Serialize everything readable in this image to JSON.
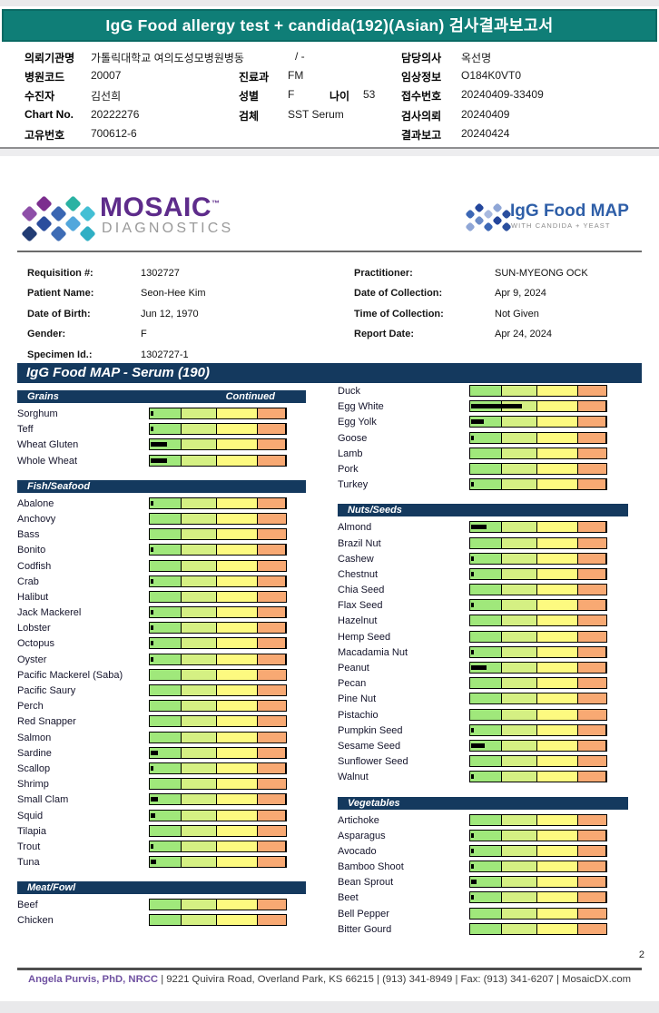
{
  "report_header": {
    "title": "IgG Food allergy test + candida(192)(Asian) 검사결과보고서"
  },
  "patient": {
    "org": {
      "label": "의뢰기관명",
      "value": "가톨릭대학교 여의도성모병원병동",
      "suffix": "/ -"
    },
    "hosp_code": {
      "label": "병원코드",
      "value": "20007"
    },
    "name": {
      "label": "수진자",
      "value": "김선희"
    },
    "chart_no": {
      "label": "Chart No.",
      "value": "20222276"
    },
    "uid": {
      "label": "고유번호",
      "value": "700612-6"
    },
    "dept": {
      "label": "진료과",
      "value": "FM"
    },
    "gender": {
      "label": "성별",
      "value": "F"
    },
    "age": {
      "label": "나이",
      "value": "53"
    },
    "specimen": {
      "label": "검체",
      "value": "SST Serum"
    },
    "doctor": {
      "label": "담당의사",
      "value": "옥선명"
    },
    "clinical": {
      "label": "임상정보",
      "value": "O184K0VT0"
    },
    "accession": {
      "label": "접수번호",
      "value": "20240409-33409"
    },
    "requested": {
      "label": "검사의뢰",
      "value": "20240409"
    },
    "reported": {
      "label": "결과보고",
      "value": "20240424"
    }
  },
  "logos": {
    "mosaic": {
      "word": "MOSAIC",
      "tm": "™",
      "sub": "DIAGNOSTICS",
      "icon_colors": [
        "#7C2E8E",
        "#2AB2A3",
        "#8E4FA8",
        "#3A66B2",
        "#43BFD4",
        "#2B4D9D",
        "#52A7DC",
        "#223C74",
        "#3E6CB5",
        "#2FAFC4"
      ]
    },
    "foodmap": {
      "word": "IgG Food MAP",
      "sub": "WITH CANDIDA + YEAST",
      "icon_colors": [
        "#24469C",
        "#8FA6D6",
        "#3C67B5",
        "#A8B9DF",
        "#2B4F9E",
        "#6C8CC8",
        "#24469C",
        "#8FA6D6",
        "#3C67B5",
        "#2B4F9E"
      ]
    }
  },
  "requisition": {
    "left": [
      {
        "label": "Requisition #:",
        "value": "1302727"
      },
      {
        "label": "Patient Name:",
        "value": "Seon-Hee Kim"
      },
      {
        "label": "Date of Birth:",
        "value": "Jun 12, 1970"
      },
      {
        "label": "Gender:",
        "value": "F"
      },
      {
        "label": "Specimen Id.:",
        "value": "1302727-1"
      }
    ],
    "right": [
      {
        "label": "Practitioner:",
        "value": "SUN-MYEONG OCK"
      },
      {
        "label": "Date of Collection:",
        "value": "Apr 9, 2024"
      },
      {
        "label": "Time of Collection:",
        "value": "Not Given"
      },
      {
        "label": "Report Date:",
        "value": "Apr 24, 2024"
      }
    ]
  },
  "chart_data": {
    "type": "bar",
    "title": "IgG Food MAP - Serum (190)",
    "note": "values are black indicator bar length as % of 4-zone reference scale",
    "scale_colors": [
      "#A0E87B",
      "#D5F083",
      "#FDFA80",
      "#F8A973"
    ],
    "scale_zone_widths_pct": [
      23,
      26.5,
      30,
      20.5
    ],
    "columns": [
      {
        "sections": [
          {
            "title": "Grains",
            "continued": "Continued",
            "items": [
              {
                "name": "Sorghum",
                "value": 2
              },
              {
                "name": "Teff",
                "value": 2
              },
              {
                "name": "Wheat Gluten",
                "value": 12
              },
              {
                "name": "Whole Wheat",
                "value": 12
              }
            ]
          },
          {
            "title": "Fish/Seafood",
            "continued": "",
            "items": [
              {
                "name": "Abalone",
                "value": 2
              },
              {
                "name": "Anchovy",
                "value": 0
              },
              {
                "name": "Bass",
                "value": 0
              },
              {
                "name": "Bonito",
                "value": 2
              },
              {
                "name": "Codfish",
                "value": 0
              },
              {
                "name": "Crab",
                "value": 2
              },
              {
                "name": "Halibut",
                "value": 0
              },
              {
                "name": "Jack Mackerel",
                "value": 2
              },
              {
                "name": "Lobster",
                "value": 2
              },
              {
                "name": "Octopus",
                "value": 2
              },
              {
                "name": "Oyster",
                "value": 2
              },
              {
                "name": "Pacific Mackerel (Saba)",
                "value": 0
              },
              {
                "name": "Pacific Saury",
                "value": 0
              },
              {
                "name": "Perch",
                "value": 0
              },
              {
                "name": "Red Snapper",
                "value": 0
              },
              {
                "name": "Salmon",
                "value": 0
              },
              {
                "name": "Sardine",
                "value": 5
              },
              {
                "name": "Scallop",
                "value": 2
              },
              {
                "name": "Shrimp",
                "value": 0
              },
              {
                "name": "Small Clam",
                "value": 5
              },
              {
                "name": "Squid",
                "value": 3
              },
              {
                "name": "Tilapia",
                "value": 0
              },
              {
                "name": "Trout",
                "value": 2
              },
              {
                "name": "Tuna",
                "value": 4
              }
            ]
          },
          {
            "title": "Meat/Fowl",
            "continued": "",
            "items": [
              {
                "name": "Beef",
                "value": 0
              },
              {
                "name": "Chicken",
                "value": 0
              }
            ]
          }
        ]
      },
      {
        "sections": [
          {
            "title": "",
            "continued": "",
            "items": [
              {
                "name": "Duck",
                "value": 0
              },
              {
                "name": "Egg White",
                "value": 37
              },
              {
                "name": "Egg Yolk",
                "value": 9
              },
              {
                "name": "Goose",
                "value": 2
              },
              {
                "name": "Lamb",
                "value": 0
              },
              {
                "name": "Pork",
                "value": 0
              },
              {
                "name": "Turkey",
                "value": 2
              }
            ]
          },
          {
            "title": "Nuts/Seeds",
            "continued": "",
            "items": [
              {
                "name": "Almond",
                "value": 11
              },
              {
                "name": "Brazil Nut",
                "value": 0
              },
              {
                "name": "Cashew",
                "value": 2
              },
              {
                "name": "Chestnut",
                "value": 2
              },
              {
                "name": "Chia Seed",
                "value": 0
              },
              {
                "name": "Flax Seed",
                "value": 2
              },
              {
                "name": "Hazelnut",
                "value": 0
              },
              {
                "name": "Hemp Seed",
                "value": 0
              },
              {
                "name": "Macadamia Nut",
                "value": 2
              },
              {
                "name": "Peanut",
                "value": 11
              },
              {
                "name": "Pecan",
                "value": 0
              },
              {
                "name": "Pine Nut",
                "value": 0
              },
              {
                "name": "Pistachio",
                "value": 0
              },
              {
                "name": "Pumpkin Seed",
                "value": 2
              },
              {
                "name": "Sesame Seed",
                "value": 10
              },
              {
                "name": "Sunflower Seed",
                "value": 0
              },
              {
                "name": "Walnut",
                "value": 2
              }
            ]
          },
          {
            "title": "Vegetables",
            "continued": "",
            "items": [
              {
                "name": "Artichoke",
                "value": 0
              },
              {
                "name": "Asparagus",
                "value": 2
              },
              {
                "name": "Avocado",
                "value": 2
              },
              {
                "name": "Bamboo Shoot",
                "value": 2
              },
              {
                "name": "Bean Sprout",
                "value": 4
              },
              {
                "name": "Beet",
                "value": 2
              },
              {
                "name": "Bell Pepper",
                "value": 0
              },
              {
                "name": "Bitter Gourd",
                "value": 0
              }
            ]
          }
        ]
      }
    ]
  },
  "footer": {
    "page_number": "2",
    "signer": "Angela Purvis, PhD, NRCC",
    "info": "| 9221 Quivira Road, Overland Park, KS 66215  |  (913) 341-8949  |  Fax: (913) 341-6207 | MosaicDX.com"
  },
  "colors": {
    "teal_header": "#0F7E77",
    "navy_section": "#14395E",
    "mosaic_purple": "#5E2C8B",
    "foodmap_blue": "#2F5FA8",
    "footer_purple": "#6F51A1"
  }
}
